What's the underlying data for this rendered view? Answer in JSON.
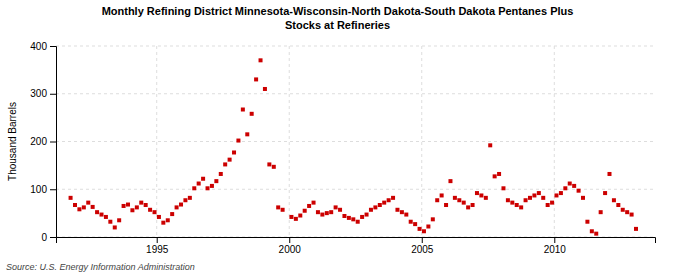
{
  "chart_data": {
    "type": "scatter",
    "title": "Monthly Refining District Minnesota-Wisconsin-North Dakota-South Dakota Pentanes Plus",
    "subtitle": "Stocks at Refineries",
    "ylabel": "Thousand Barrels",
    "source": "Source: U.S. Energy Information Administration",
    "color": "#cc0000",
    "marker": "square",
    "grid": true,
    "xlim": [
      1991.2,
      2013.8
    ],
    "xticks": [
      1995,
      2000,
      2005,
      2010
    ],
    "ylim": [
      0,
      400
    ],
    "yticks": [
      0,
      100,
      200,
      300,
      400
    ],
    "x": [
      1991.75,
      1991.917,
      1992.083,
      1992.25,
      1992.417,
      1992.583,
      1992.75,
      1992.917,
      1993.083,
      1993.25,
      1993.417,
      1993.583,
      1993.75,
      1993.917,
      1994.083,
      1994.25,
      1994.417,
      1994.583,
      1994.75,
      1994.917,
      1995.083,
      1995.25,
      1995.417,
      1995.583,
      1995.75,
      1995.917,
      1996.083,
      1996.25,
      1996.417,
      1996.583,
      1996.75,
      1996.917,
      1997.083,
      1997.25,
      1997.417,
      1997.583,
      1997.75,
      1997.917,
      1998.083,
      1998.25,
      1998.417,
      1998.583,
      1998.75,
      1998.917,
      1999.083,
      1999.25,
      1999.417,
      1999.583,
      1999.75,
      2000.083,
      2000.25,
      2000.417,
      2000.583,
      2000.75,
      2000.917,
      2001.083,
      2001.25,
      2001.417,
      2001.583,
      2001.75,
      2001.917,
      2002.083,
      2002.25,
      2002.417,
      2002.583,
      2002.75,
      2002.917,
      2003.083,
      2003.25,
      2003.417,
      2003.583,
      2003.75,
      2003.917,
      2004.083,
      2004.25,
      2004.417,
      2004.583,
      2004.75,
      2004.917,
      2005.083,
      2005.25,
      2005.417,
      2005.583,
      2005.75,
      2005.917,
      2006.083,
      2006.25,
      2006.417,
      2006.583,
      2006.75,
      2006.917,
      2007.083,
      2007.25,
      2007.417,
      2007.583,
      2007.75,
      2007.917,
      2008.083,
      2008.25,
      2008.417,
      2008.583,
      2008.75,
      2008.917,
      2009.083,
      2009.25,
      2009.417,
      2009.583,
      2009.75,
      2009.917,
      2010.083,
      2010.25,
      2010.417,
      2010.583,
      2010.75,
      2010.917,
      2011.083,
      2011.25,
      2011.417,
      2011.583,
      2011.75,
      2011.917,
      2012.083,
      2012.25,
      2012.417,
      2012.583,
      2012.75,
      2012.917,
      2013.083
    ],
    "values": [
      82,
      67,
      58,
      62,
      72,
      63,
      52,
      47,
      42,
      32,
      20,
      35,
      65,
      68,
      56,
      62,
      72,
      67,
      57,
      52,
      42,
      30,
      35,
      48,
      62,
      68,
      77,
      82,
      102,
      112,
      122,
      102,
      107,
      117,
      132,
      152,
      162,
      177,
      202,
      267,
      215,
      258,
      330,
      370,
      310,
      152,
      147,
      62,
      57,
      42,
      38,
      45,
      55,
      65,
      72,
      52,
      47,
      50,
      52,
      62,
      57,
      44,
      40,
      37,
      32,
      42,
      47,
      57,
      62,
      67,
      72,
      77,
      82,
      57,
      52,
      47,
      32,
      27,
      17,
      12,
      22,
      37,
      77,
      87,
      67,
      117,
      82,
      77,
      72,
      62,
      67,
      92,
      87,
      82,
      192,
      127,
      132,
      102,
      77,
      72,
      67,
      62,
      77,
      82,
      87,
      92,
      82,
      67,
      72,
      87,
      92,
      102,
      112,
      107,
      97,
      82,
      32,
      12,
      7,
      52,
      92,
      132,
      77,
      67,
      57,
      52,
      47,
      17
    ]
  }
}
